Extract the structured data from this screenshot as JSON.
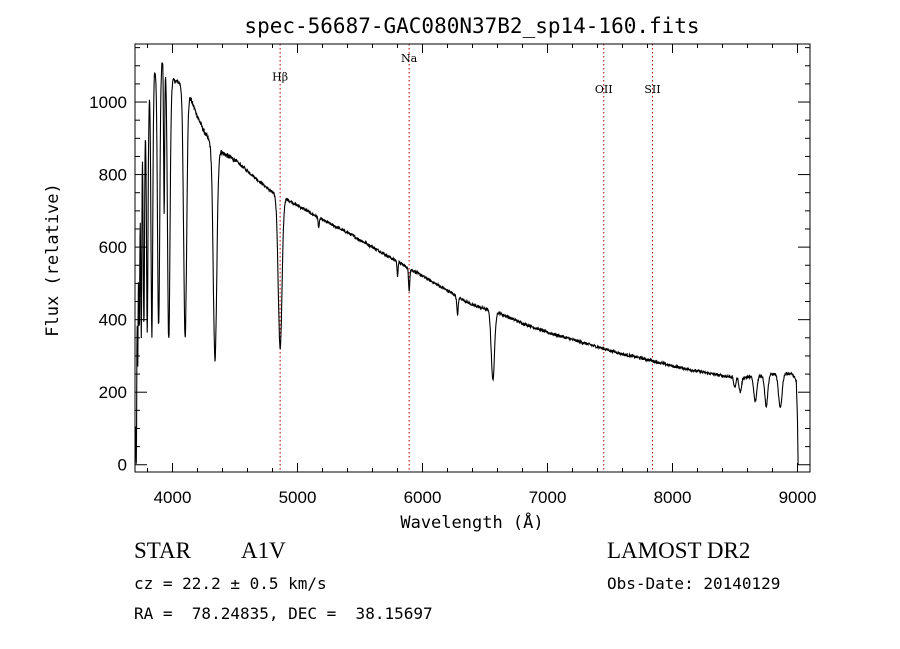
{
  "chart_data": {
    "type": "line",
    "title": "spec-56687-GAC080N37B2_sp14-160.fits",
    "xlabel": "Wavelength (Å)",
    "ylabel": "Flux (relative)",
    "xlim": [
      3700,
      9100
    ],
    "ylim": [
      -20,
      1160
    ],
    "x_ticks": [
      4000,
      5000,
      6000,
      7000,
      8000,
      9000
    ],
    "x_tick_labels": [
      "4000",
      "5000",
      "6000",
      "7000",
      "8000",
      "9000"
    ],
    "y_ticks": [
      0,
      200,
      400,
      600,
      800,
      1000
    ],
    "y_tick_labels": [
      "0",
      "200",
      "400",
      "600",
      "800",
      "1000"
    ],
    "line_color": "#000000",
    "marker_color": "#b40000",
    "line_markers": [
      {
        "label": "Hβ",
        "wavelength": 4861,
        "label_flux": 1060
      },
      {
        "label": "Na",
        "wavelength": 5893,
        "label_flux": 1110
      },
      {
        "label": "OII",
        "wavelength": 7450,
        "label_flux": 1025
      },
      {
        "label": "SII",
        "wavelength": 7840,
        "label_flux": 1025
      }
    ],
    "continuum": [
      [
        3700,
        0
      ],
      [
        3705,
        150
      ],
      [
        3715,
        480
      ],
      [
        3730,
        700
      ],
      [
        3760,
        900
      ],
      [
        3800,
        1000
      ],
      [
        3850,
        1080
      ],
      [
        3900,
        1120
      ],
      [
        3950,
        1100
      ],
      [
        4000,
        1060
      ],
      [
        4050,
        1055
      ],
      [
        4100,
        1040
      ],
      [
        4150,
        1005
      ],
      [
        4200,
        960
      ],
      [
        4250,
        920
      ],
      [
        4300,
        890
      ],
      [
        4400,
        860
      ],
      [
        4500,
        840
      ],
      [
        4600,
        810
      ],
      [
        4700,
        780
      ],
      [
        4800,
        750
      ],
      [
        4900,
        735
      ],
      [
        5000,
        715
      ],
      [
        5200,
        675
      ],
      [
        5400,
        640
      ],
      [
        5600,
        600
      ],
      [
        5800,
        560
      ],
      [
        6000,
        520
      ],
      [
        6200,
        480
      ],
      [
        6400,
        440
      ],
      [
        6600,
        420
      ],
      [
        6800,
        390
      ],
      [
        7000,
        365
      ],
      [
        7200,
        345
      ],
      [
        7400,
        325
      ],
      [
        7600,
        305
      ],
      [
        7800,
        290
      ],
      [
        8000,
        272
      ],
      [
        8200,
        258
      ],
      [
        8400,
        245
      ],
      [
        8550,
        240
      ],
      [
        8700,
        245
      ],
      [
        8800,
        250
      ],
      [
        8900,
        252
      ],
      [
        8960,
        250
      ],
      [
        8990,
        230
      ],
      [
        9000,
        120
      ],
      [
        9005,
        0
      ]
    ],
    "absorption_lines": [
      {
        "center": 3711,
        "depth": 330,
        "width": 3
      },
      {
        "center": 3722,
        "depth": 320,
        "width": 3
      },
      {
        "center": 3734,
        "depth": 360,
        "width": 4
      },
      {
        "center": 3750,
        "depth": 480,
        "width": 4
      },
      {
        "center": 3771,
        "depth": 540,
        "width": 5
      },
      {
        "center": 3798,
        "depth": 630,
        "width": 6
      },
      {
        "center": 3835,
        "depth": 700,
        "width": 7
      },
      {
        "center": 3889,
        "depth": 730,
        "width": 9
      },
      {
        "center": 3933,
        "depth": 420,
        "width": 4
      },
      {
        "center": 3970,
        "depth": 740,
        "width": 10
      },
      {
        "center": 4101,
        "depth": 690,
        "width": 12
      },
      {
        "center": 4340,
        "depth": 590,
        "width": 14
      },
      {
        "center": 4861,
        "depth": 420,
        "width": 15
      },
      {
        "center": 5170,
        "depth": 25,
        "width": 5
      },
      {
        "center": 5800,
        "depth": 40,
        "width": 4
      },
      {
        "center": 5893,
        "depth": 60,
        "width": 5
      },
      {
        "center": 6280,
        "depth": 50,
        "width": 6
      },
      {
        "center": 6563,
        "depth": 190,
        "width": 13
      },
      {
        "center": 8498,
        "depth": 30,
        "width": 8
      },
      {
        "center": 8542,
        "depth": 40,
        "width": 10
      },
      {
        "center": 8662,
        "depth": 70,
        "width": 12
      },
      {
        "center": 8750,
        "depth": 85,
        "width": 12
      },
      {
        "center": 8862,
        "depth": 95,
        "width": 14
      }
    ]
  },
  "info": {
    "object_class": "STAR",
    "subclass": "A1V",
    "survey": "LAMOST DR2",
    "cz": "cz = 22.2 ± 0.5 km/s",
    "obs_date": "Obs-Date: 20140129",
    "coords": "RA =  78.24835, DEC =  38.15697"
  }
}
